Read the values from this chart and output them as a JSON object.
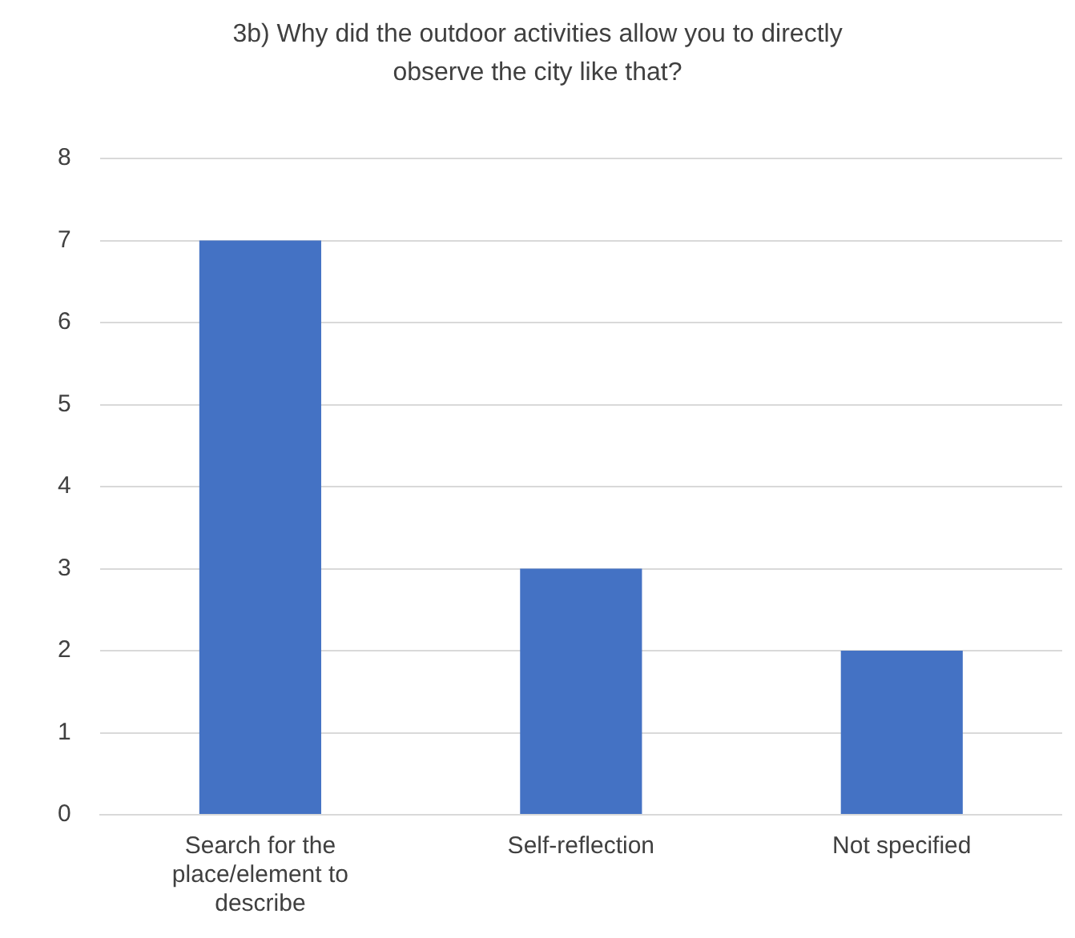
{
  "chart_data": {
    "type": "bar",
    "title": "3b) Why did the outdoor activities allow you to directly observe the city like that?",
    "categories": [
      "Search for the place/element to describe",
      "Self-reflection",
      "Not specified"
    ],
    "values": [
      7,
      3,
      2
    ],
    "color": "#4472c4",
    "ylim": [
      0,
      8
    ],
    "yticks": [
      0,
      1,
      2,
      3,
      4,
      5,
      6,
      7,
      8
    ],
    "grid": "y"
  }
}
